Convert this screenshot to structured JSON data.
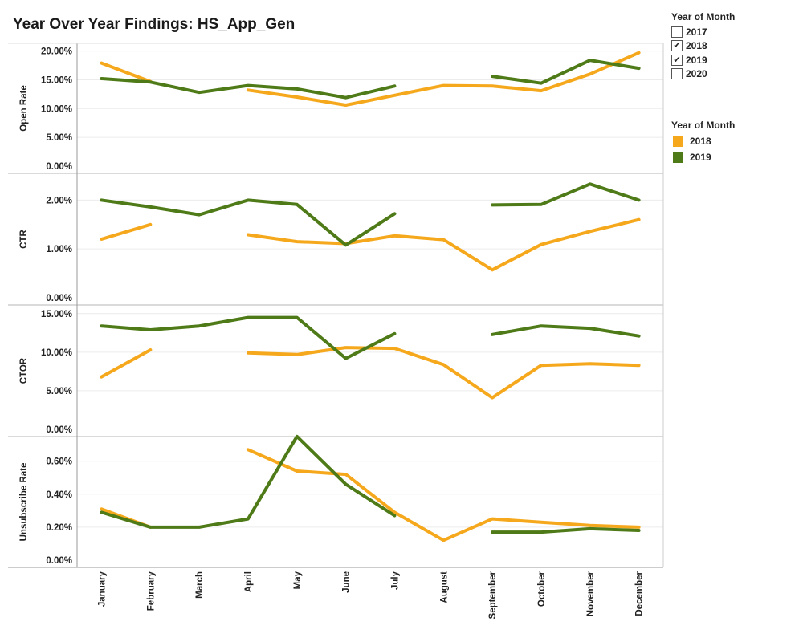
{
  "title": "Year Over Year Findings: HS_App_Gen",
  "filter": {
    "title": "Year of Month",
    "items": [
      {
        "label": "2017",
        "checked": false
      },
      {
        "label": "2018",
        "checked": true
      },
      {
        "label": "2019",
        "checked": true
      },
      {
        "label": "2020",
        "checked": false
      }
    ]
  },
  "legend": {
    "title": "Year of Month",
    "items": [
      {
        "label": "2018",
        "color": "#F5A81C"
      },
      {
        "label": "2019",
        "color": "#4E7A17"
      }
    ]
  },
  "chart_data": {
    "type": "line",
    "categories": [
      "January",
      "February",
      "March",
      "April",
      "May",
      "June",
      "July",
      "August",
      "September",
      "October",
      "November",
      "December"
    ],
    "series_colors": {
      "2018": "#F5A81C",
      "2019": "#4E7A17"
    },
    "panels": [
      {
        "ylabel": "Open Rate",
        "ylim": [
          0,
          20.5
        ],
        "ticks": [
          0,
          5,
          10,
          15,
          20
        ],
        "tick_labels": [
          "0.00%",
          "5.00%",
          "10.00%",
          "15.00%",
          "20.00%"
        ],
        "series": [
          {
            "name": "2018",
            "values": [
              17.9,
              14.7,
              null,
              13.2,
              12.0,
              10.6,
              12.3,
              14.0,
              13.9,
              13.1,
              16.0,
              19.7
            ]
          },
          {
            "name": "2019",
            "values": [
              15.2,
              14.6,
              12.8,
              14.0,
              13.4,
              11.9,
              13.9,
              null,
              15.6,
              14.4,
              18.4,
              17.0
            ]
          }
        ]
      },
      {
        "ylabel": "CTR",
        "ylim": [
          0,
          2.45
        ],
        "ticks": [
          0,
          1,
          2
        ],
        "tick_labels": [
          "0.00%",
          "1.00%",
          "2.00%"
        ],
        "series": [
          {
            "name": "2018",
            "values": [
              1.2,
              1.5,
              null,
              1.29,
              1.15,
              1.11,
              1.27,
              1.19,
              0.57,
              1.09,
              1.36,
              1.6
            ]
          },
          {
            "name": "2019",
            "values": [
              2.0,
              1.86,
              1.7,
              2.0,
              1.91,
              1.08,
              1.72,
              null,
              1.9,
              1.91,
              2.33,
              2.0
            ]
          }
        ]
      },
      {
        "ylabel": "CTOR",
        "ylim": [
          0,
          15.5
        ],
        "ticks": [
          0,
          5,
          10,
          15
        ],
        "tick_labels": [
          "0.00%",
          "5.00%",
          "10.00%",
          "15.00%"
        ],
        "series": [
          {
            "name": "2018",
            "values": [
              6.8,
              10.3,
              null,
              9.9,
              9.7,
              10.6,
              10.5,
              8.4,
              4.1,
              8.3,
              8.5,
              8.3
            ]
          },
          {
            "name": "2019",
            "values": [
              13.4,
              12.9,
              13.4,
              14.5,
              14.5,
              9.2,
              12.4,
              null,
              12.3,
              13.4,
              13.1,
              12.1
            ]
          }
        ]
      },
      {
        "ylabel": "Unsubscribe Rate",
        "ylim": [
          0,
          0.72
        ],
        "ticks": [
          0,
          0.2,
          0.4,
          0.6
        ],
        "tick_labels": [
          "0.00%",
          "0.20%",
          "0.40%",
          "0.60%"
        ],
        "series": [
          {
            "name": "2018",
            "values": [
              0.31,
              0.2,
              null,
              0.67,
              0.54,
              0.52,
              0.29,
              0.12,
              0.25,
              0.23,
              0.21,
              0.2
            ]
          },
          {
            "name": "2019",
            "values": [
              0.29,
              0.2,
              0.2,
              0.25,
              0.75,
              0.46,
              0.27,
              null,
              0.17,
              0.17,
              0.19,
              0.18
            ]
          }
        ]
      }
    ]
  }
}
